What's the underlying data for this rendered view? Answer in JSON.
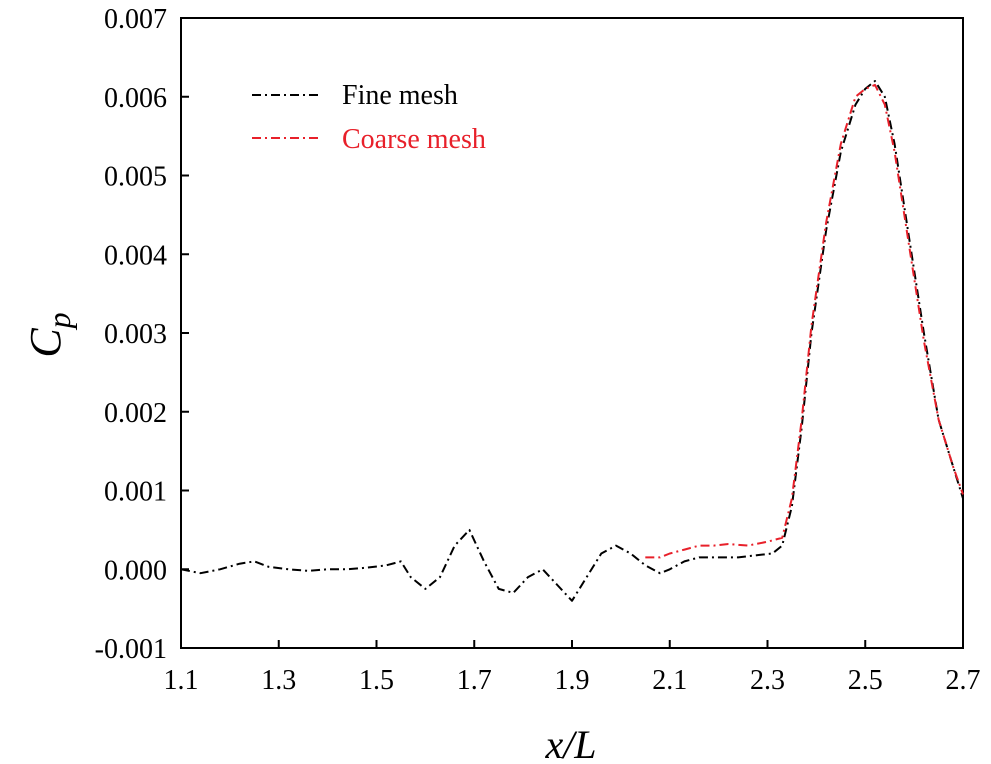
{
  "chart_data": {
    "type": "line",
    "title": "",
    "xlabel": "x/L",
    "ylabel_main": "C",
    "ylabel_sub": "p",
    "xlim": [
      1.1,
      2.7
    ],
    "ylim": [
      -0.001,
      0.007
    ],
    "xticks": [
      1.1,
      1.3,
      1.5,
      1.7,
      1.9,
      2.1,
      2.3,
      2.5,
      2.7
    ],
    "xtick_labels": [
      "1.1",
      "1.3",
      "1.5",
      "1.7",
      "1.9",
      "2.1",
      "2.3",
      "2.5",
      "2.7"
    ],
    "yticks": [
      -0.001,
      0.0,
      0.001,
      0.002,
      0.003,
      0.004,
      0.005,
      0.006,
      0.007
    ],
    "ytick_labels": [
      "-0.001",
      "0.000",
      "0.001",
      "0.002",
      "0.003",
      "0.004",
      "0.005",
      "0.006",
      "0.007"
    ],
    "grid": false,
    "legend_position": "top-left",
    "series": [
      {
        "name": "Fine mesh",
        "color": "#000000",
        "x": [
          1.1,
          1.14,
          1.18,
          1.22,
          1.25,
          1.28,
          1.32,
          1.36,
          1.4,
          1.44,
          1.48,
          1.52,
          1.55,
          1.57,
          1.6,
          1.63,
          1.66,
          1.69,
          1.72,
          1.75,
          1.78,
          1.81,
          1.84,
          1.87,
          1.9,
          1.93,
          1.96,
          1.99,
          2.02,
          2.05,
          2.08,
          2.1,
          2.13,
          2.16,
          2.2,
          2.24,
          2.28,
          2.31,
          2.33,
          2.35,
          2.37,
          2.39,
          2.42,
          2.45,
          2.48,
          2.5,
          2.52,
          2.54,
          2.56,
          2.59,
          2.62,
          2.65,
          2.68,
          2.7
        ],
        "y": [
          0.0,
          -5e-05,
          0.0,
          7e-05,
          0.0001,
          3e-05,
          0.0,
          -2e-05,
          0.0,
          0.0,
          2e-05,
          5e-05,
          0.0001,
          -0.0001,
          -0.00025,
          -0.0001,
          0.0003,
          0.0005,
          0.0001,
          -0.00025,
          -0.0003,
          -0.0001,
          0.0,
          -0.0002,
          -0.0004,
          -0.0001,
          0.0002,
          0.0003,
          0.0002,
          5e-05,
          -5e-05,
          0.0,
          0.0001,
          0.00015,
          0.00015,
          0.00015,
          0.00018,
          0.0002,
          0.0003,
          0.0008,
          0.0018,
          0.003,
          0.0043,
          0.0053,
          0.0059,
          0.0061,
          0.0062,
          0.006,
          0.0054,
          0.0042,
          0.003,
          0.0019,
          0.0013,
          0.0009
        ]
      },
      {
        "name": "Coarse mesh",
        "color": "#e8202a",
        "x": [
          2.05,
          2.08,
          2.1,
          2.13,
          2.16,
          2.19,
          2.22,
          2.26,
          2.3,
          2.33,
          2.35,
          2.37,
          2.39,
          2.42,
          2.45,
          2.48,
          2.5,
          2.52,
          2.54,
          2.56,
          2.59,
          2.62,
          2.65,
          2.68,
          2.7
        ],
        "y": [
          0.00015,
          0.00015,
          0.0002,
          0.00025,
          0.0003,
          0.0003,
          0.00032,
          0.0003,
          0.00035,
          0.0004,
          0.0009,
          0.0019,
          0.0031,
          0.0044,
          0.0054,
          0.006,
          0.0061,
          0.00615,
          0.0059,
          0.0053,
          0.0041,
          0.0029,
          0.0019,
          0.0013,
          0.00095
        ]
      }
    ]
  }
}
